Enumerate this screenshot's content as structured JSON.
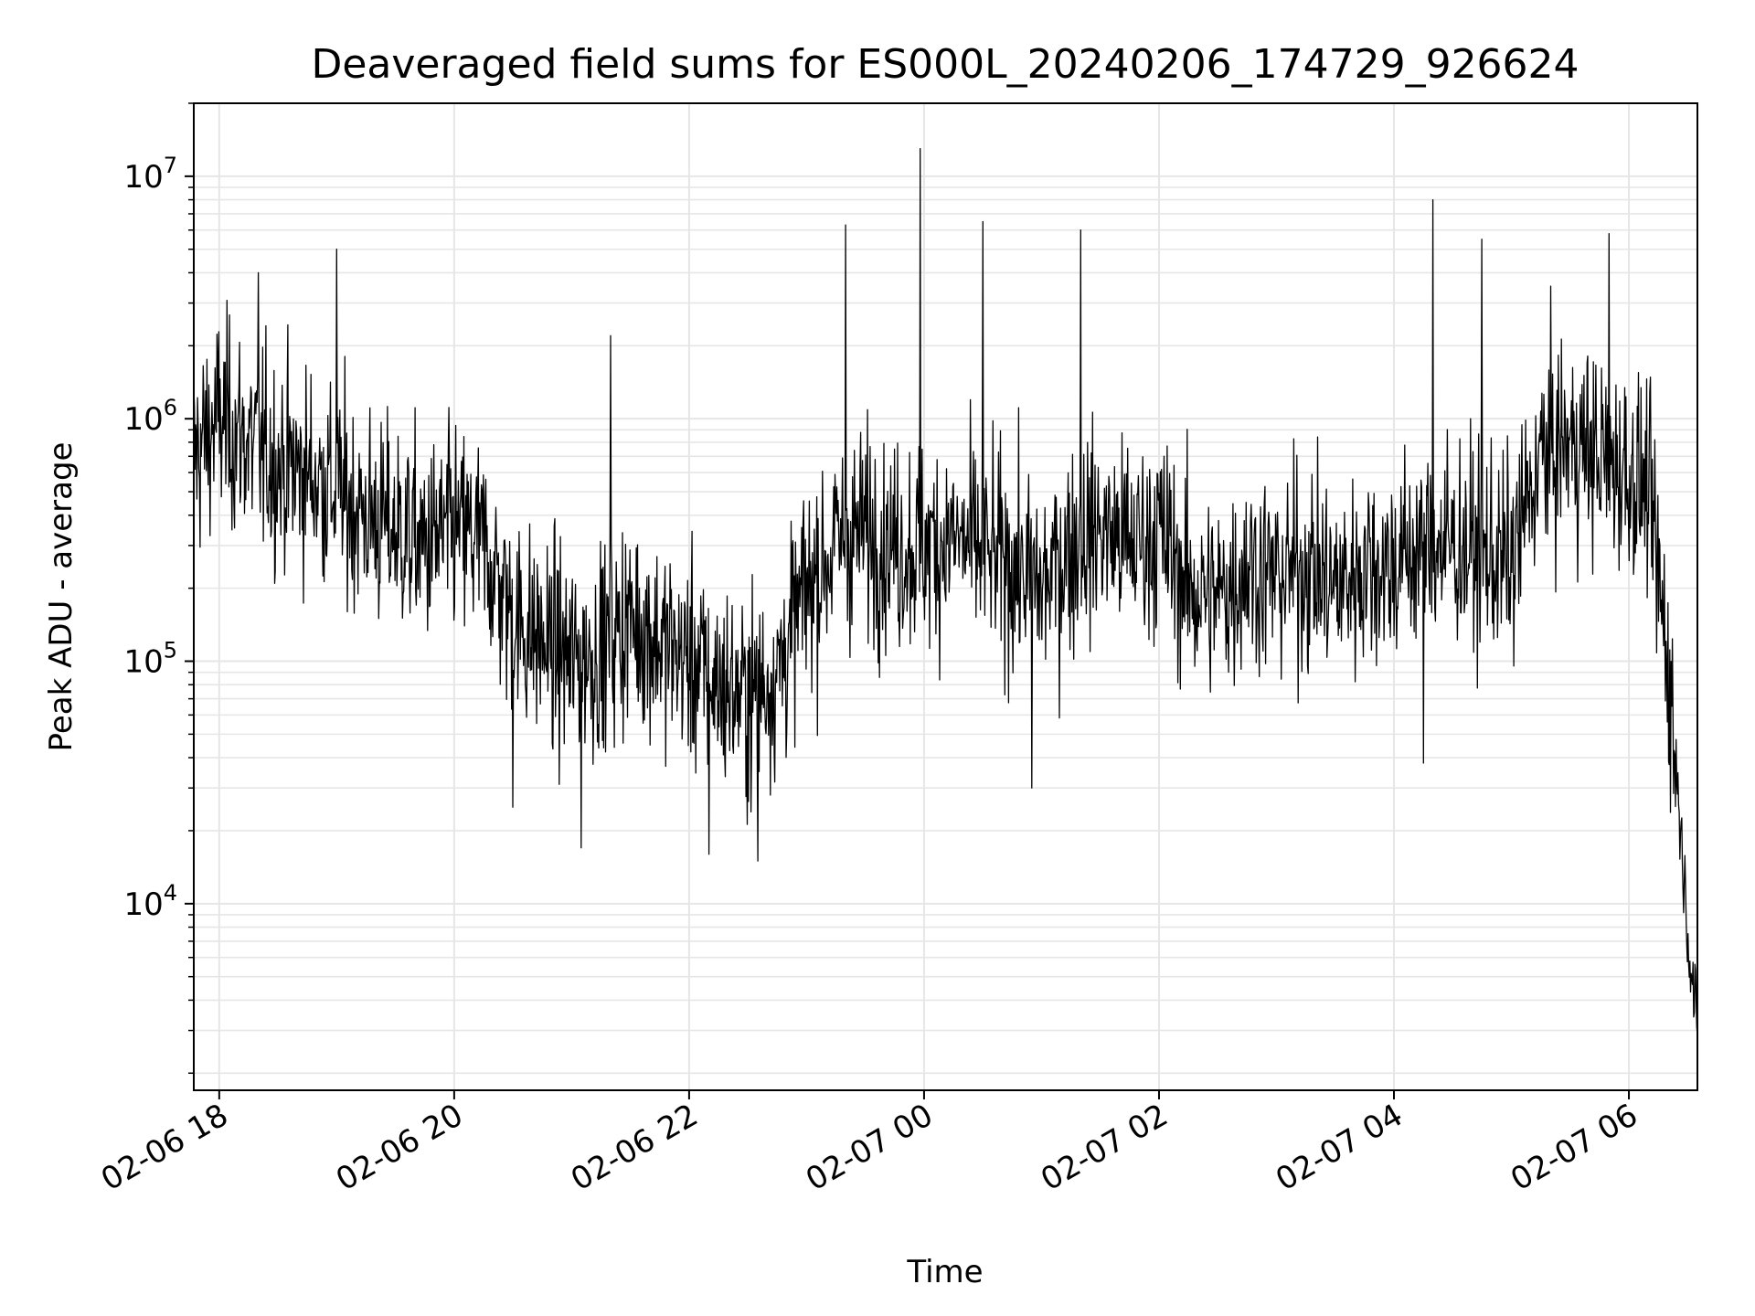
{
  "chart_data": {
    "type": "line",
    "title": "Deaveraged field sums for ES000L_20240206_174729_926624",
    "xlabel": "Time",
    "ylabel": "Peak ADU - average",
    "xscale": "time",
    "yscale": "log",
    "xlim": [
      "2024-02-06 17:47",
      "2024-02-07 06:35"
    ],
    "ylim": [
      1700,
      20000000
    ],
    "grid": true,
    "x_ticks": [
      "2024-02-06 18:00",
      "2024-02-06 20:00",
      "2024-02-06 22:00",
      "2024-02-07 00:00",
      "2024-02-07 02:00",
      "2024-02-07 04:00",
      "2024-02-07 06:00"
    ],
    "x_tick_labels": [
      "02-06 18",
      "02-06 20",
      "02-06 22",
      "02-07 00",
      "02-07 02",
      "02-07 04",
      "02-07 06"
    ],
    "y_ticks": [
      {
        "base": "10",
        "exp": "4",
        "value": 10000
      },
      {
        "base": "10",
        "exp": "5",
        "value": 100000
      },
      {
        "base": "10",
        "exp": "6",
        "value": 1000000
      },
      {
        "base": "10",
        "exp": "7",
        "value": 10000000
      }
    ],
    "series": [
      {
        "color": "#000000",
        "x": [
          "2024-02-06 17:47",
          "2024-02-06 18:00",
          "2024-02-06 18:15",
          "2024-02-06 18:30",
          "2024-02-06 18:45",
          "2024-02-06 19:00",
          "2024-02-06 19:15",
          "2024-02-06 19:30",
          "2024-02-06 19:45",
          "2024-02-06 20:00",
          "2024-02-06 20:15",
          "2024-02-06 20:30",
          "2024-02-06 20:45",
          "2024-02-06 21:00",
          "2024-02-06 21:15",
          "2024-02-06 21:30",
          "2024-02-06 21:45",
          "2024-02-06 22:00",
          "2024-02-06 22:15",
          "2024-02-06 22:30",
          "2024-02-06 22:45",
          "2024-02-06 23:00",
          "2024-02-06 23:15",
          "2024-02-06 23:30",
          "2024-02-06 23:45",
          "2024-02-07 00:00",
          "2024-02-07 00:15",
          "2024-02-07 00:30",
          "2024-02-07 00:45",
          "2024-02-07 01:00",
          "2024-02-07 01:15",
          "2024-02-07 01:30",
          "2024-02-07 01:45",
          "2024-02-07 02:00",
          "2024-02-07 02:15",
          "2024-02-07 02:30",
          "2024-02-07 02:45",
          "2024-02-07 03:00",
          "2024-02-07 03:15",
          "2024-02-07 03:30",
          "2024-02-07 03:45",
          "2024-02-07 04:00",
          "2024-02-07 04:15",
          "2024-02-07 04:30",
          "2024-02-07 04:45",
          "2024-02-07 05:00",
          "2024-02-07 05:15",
          "2024-02-07 05:30",
          "2024-02-07 05:45",
          "2024-02-07 06:00",
          "2024-02-07 06:10",
          "2024-02-07 06:20",
          "2024-02-07 06:25",
          "2024-02-07 06:30",
          "2024-02-07 06:35"
        ],
        "y": [
          700000,
          1000000,
          800000,
          650000,
          600000,
          500000,
          400000,
          350000,
          300000,
          350000,
          300000,
          150000,
          120000,
          100000,
          110000,
          150000,
          120000,
          100000,
          80000,
          70000,
          90000,
          200000,
          300000,
          350000,
          300000,
          300000,
          320000,
          280000,
          250000,
          200000,
          300000,
          350000,
          300000,
          350000,
          200000,
          180000,
          250000,
          220000,
          250000,
          200000,
          250000,
          250000,
          300000,
          300000,
          280000,
          250000,
          700000,
          800000,
          700000,
          600000,
          500000,
          100000,
          30000,
          8000,
          2800
        ],
        "spike_highs": [
          {
            "x": "2024-02-06 18:20",
            "y": 4000000
          },
          {
            "x": "2024-02-06 19:00",
            "y": 5000000
          },
          {
            "x": "2024-02-06 21:20",
            "y": 2200000
          },
          {
            "x": "2024-02-06 23:20",
            "y": 6300000
          },
          {
            "x": "2024-02-06 23:58",
            "y": 13000000
          },
          {
            "x": "2024-02-07 00:30",
            "y": 6500000
          },
          {
            "x": "2024-02-07 01:20",
            "y": 6000000
          },
          {
            "x": "2024-02-07 04:20",
            "y": 8000000
          },
          {
            "x": "2024-02-07 04:45",
            "y": 5500000
          },
          {
            "x": "2024-02-07 05:50",
            "y": 5800000
          }
        ],
        "spike_lows": [
          {
            "x": "2024-02-06 20:30",
            "y": 25000
          },
          {
            "x": "2024-02-06 21:05",
            "y": 17000
          },
          {
            "x": "2024-02-06 22:10",
            "y": 16000
          },
          {
            "x": "2024-02-06 22:35",
            "y": 15000
          },
          {
            "x": "2024-02-07 00:55",
            "y": 30000
          },
          {
            "x": "2024-02-07 04:15",
            "y": 38000
          }
        ]
      }
    ]
  }
}
